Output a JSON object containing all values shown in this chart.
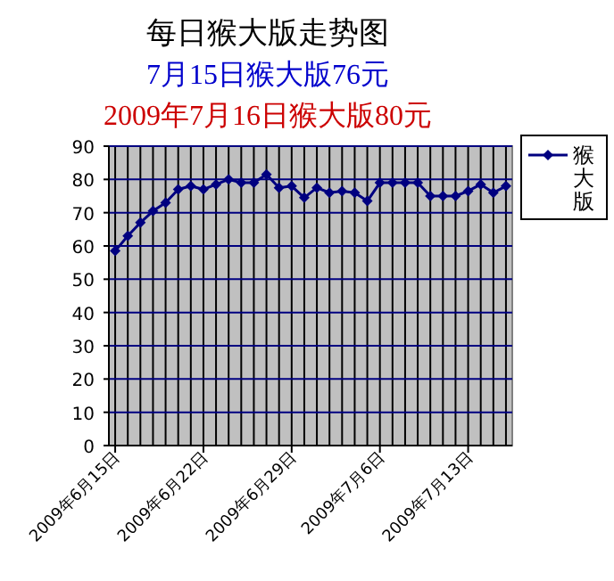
{
  "chart_data": {
    "type": "line",
    "title": "每日猴大版走势图",
    "subtitle": "7月15日猴大版76元",
    "annotations": [
      "2009年7月16日猴大版80元"
    ],
    "categories": [
      "2009年6月15日",
      null,
      null,
      null,
      null,
      null,
      null,
      "2009年6月22日",
      null,
      null,
      null,
      null,
      null,
      null,
      "2009年6月29日",
      null,
      null,
      null,
      null,
      null,
      null,
      "2009年7月6日",
      null,
      null,
      null,
      null,
      null,
      null,
      "2009年7月13日",
      null,
      null,
      null
    ],
    "series": [
      {
        "name": "猴大版",
        "color": "#000080",
        "values": [
          58.5,
          63,
          67,
          70.5,
          73,
          77,
          78,
          77,
          78.5,
          80,
          79,
          79,
          81.5,
          77.5,
          78,
          74.5,
          77.5,
          76,
          76.5,
          76,
          73.5,
          79,
          79,
          79,
          79,
          75,
          75,
          75,
          76.5,
          78.5,
          76,
          78
        ]
      }
    ],
    "ylim": [
      0,
      90
    ],
    "yticks": [
      0,
      10,
      20,
      30,
      40,
      50,
      60,
      70,
      80,
      90
    ],
    "grid": true,
    "legend": "right",
    "marker": "diamond",
    "line_style": "solid"
  }
}
